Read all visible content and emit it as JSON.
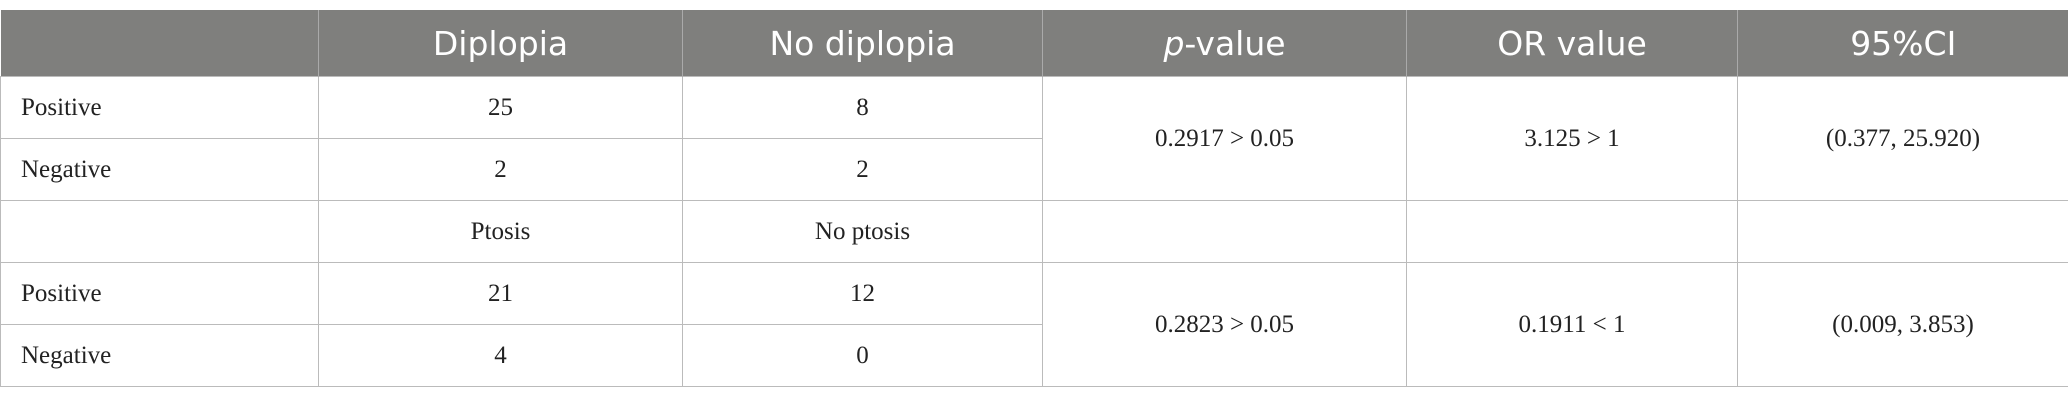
{
  "table": {
    "header": [
      "",
      "Diplopia",
      "No diplopia",
      [
        "p",
        "-value"
      ],
      "OR value",
      "95%CI"
    ],
    "rows": [
      [
        "Positive",
        "25",
        "8",
        "0.2917 > 0.05",
        "3.125 > 1",
        "(0.377, 25.920)"
      ],
      [
        "Negative",
        "2",
        "2"
      ],
      [
        "",
        "Ptosis",
        "No ptosis",
        "",
        "",
        ""
      ],
      [
        "Positive",
        "21",
        "12",
        "0.2823 > 0.05",
        "0.1911 < 1",
        "(0.009, 3.853)"
      ],
      [
        "Negative",
        "4",
        "0"
      ]
    ]
  }
}
